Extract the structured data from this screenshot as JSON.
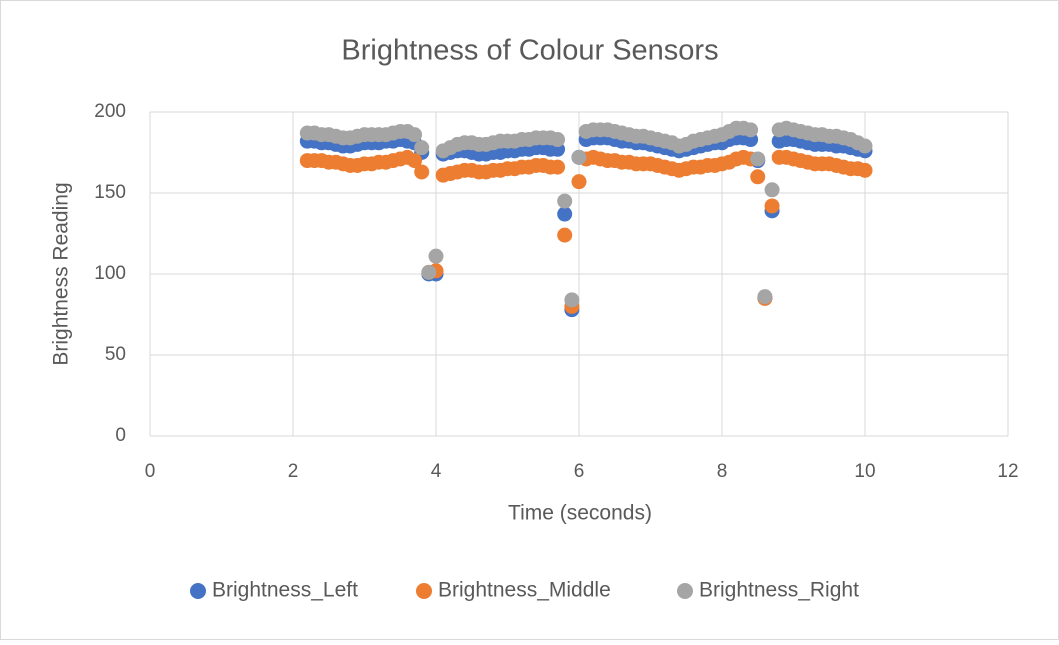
{
  "chart_data": {
    "type": "scatter",
    "title": "Brightness of Colour Sensors",
    "x_label": "Time (seconds)",
    "y_label": "Brightness Reading",
    "x": [
      2.2,
      2.3,
      2.4,
      2.5,
      2.6,
      2.7,
      2.8,
      2.9,
      3.0,
      3.1,
      3.2,
      3.3,
      3.4,
      3.5,
      3.6,
      3.7,
      3.8,
      3.9,
      4.0,
      4.1,
      4.2,
      4.3,
      4.4,
      4.5,
      4.6,
      4.7,
      4.8,
      4.9,
      5.0,
      5.1,
      5.2,
      5.3,
      5.4,
      5.5,
      5.6,
      5.7,
      5.8,
      5.9,
      6.0,
      6.1,
      6.2,
      6.3,
      6.4,
      6.5,
      6.6,
      6.7,
      6.8,
      6.9,
      7.0,
      7.1,
      7.2,
      7.3,
      7.4,
      7.5,
      7.6,
      7.7,
      7.8,
      7.9,
      8.0,
      8.1,
      8.2,
      8.3,
      8.4,
      8.5,
      8.6,
      8.7,
      8.8,
      8.9,
      9.0,
      9.1,
      9.2,
      9.3,
      9.4,
      9.5,
      9.6,
      9.7,
      9.8,
      9.9,
      10.0
    ],
    "series": [
      {
        "name": "Brightness_Left",
        "color": "#4472c4",
        "values": [
          182,
          182,
          181,
          181,
          180,
          179,
          179,
          180,
          181,
          181,
          181,
          182,
          182,
          183,
          182,
          181,
          175,
          100,
          100,
          174,
          175,
          176,
          176,
          175,
          174,
          174,
          175,
          175,
          176,
          176,
          177,
          177,
          178,
          178,
          177,
          177,
          137,
          78,
          172,
          183,
          184,
          184,
          184,
          183,
          182,
          182,
          181,
          181,
          180,
          179,
          178,
          177,
          176,
          177,
          178,
          179,
          180,
          181,
          181,
          183,
          184,
          184,
          183,
          170,
          85,
          139,
          182,
          183,
          183,
          182,
          181,
          180,
          180,
          180,
          179,
          179,
          178,
          177,
          176
        ]
      },
      {
        "name": "Brightness_Middle",
        "color": "#ed7d31",
        "values": [
          170,
          170,
          170,
          169,
          169,
          168,
          167,
          167,
          168,
          168,
          169,
          169,
          170,
          171,
          172,
          170,
          163,
          101,
          102,
          161,
          162,
          163,
          164,
          164,
          163,
          163,
          164,
          164,
          165,
          165,
          166,
          166,
          167,
          167,
          166,
          166,
          124,
          80,
          157,
          171,
          172,
          171,
          170,
          170,
          169,
          169,
          168,
          168,
          168,
          167,
          166,
          165,
          164,
          165,
          166,
          166,
          167,
          167,
          168,
          169,
          171,
          172,
          171,
          160,
          85,
          142,
          172,
          172,
          171,
          170,
          169,
          168,
          168,
          168,
          167,
          166,
          165,
          165,
          164
        ]
      },
      {
        "name": "Brightness_Right",
        "color": "#a5a5a5",
        "values": [
          187,
          187,
          186,
          186,
          185,
          184,
          184,
          185,
          186,
          186,
          186,
          186,
          187,
          188,
          188,
          186,
          178,
          101,
          111,
          176,
          178,
          180,
          181,
          181,
          180,
          180,
          181,
          182,
          182,
          182,
          183,
          183,
          184,
          184,
          184,
          183,
          145,
          84,
          172,
          188,
          189,
          189,
          189,
          188,
          187,
          186,
          185,
          185,
          184,
          183,
          182,
          181,
          179,
          180,
          182,
          183,
          184,
          185,
          186,
          188,
          190,
          190,
          189,
          171,
          86,
          152,
          189,
          190,
          189,
          188,
          187,
          186,
          186,
          185,
          185,
          184,
          183,
          181,
          179
        ]
      }
    ],
    "xlim": [
      0,
      12
    ],
    "xticks": [
      0,
      2,
      4,
      6,
      8,
      10,
      12
    ],
    "ylim": [
      0,
      200
    ],
    "yticks": [
      0,
      50,
      100,
      150,
      200
    ],
    "grid": true,
    "legend": "bottom"
  }
}
